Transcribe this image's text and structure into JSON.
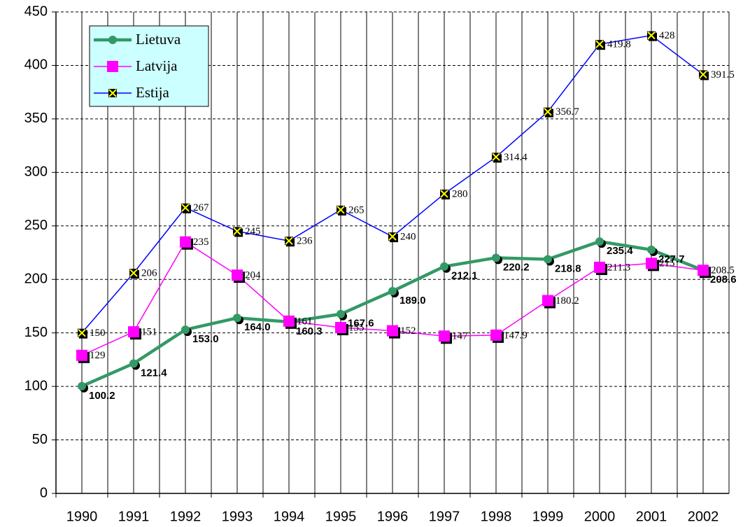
{
  "chart_data": {
    "type": "line",
    "categories": [
      "1990",
      "1991",
      "1992",
      "1993",
      "1994",
      "1995",
      "1996",
      "1997",
      "1998",
      "1999",
      "2000",
      "2001",
      "2002"
    ],
    "series": [
      {
        "name": "Lietuva",
        "color": "#339966",
        "values": [
          100.2,
          121.4,
          153.0,
          164.0,
          160.3,
          167.6,
          189.0,
          212.1,
          220.2,
          218.8,
          235.4,
          227.7,
          208.6
        ],
        "value_labels": [
          "100.2",
          "121.4",
          "153.0",
          "164.0",
          "160.3",
          "167.6",
          "189.0",
          "212.1",
          "220.2",
          "218.8",
          "235.4",
          "227.7",
          "208.6"
        ]
      },
      {
        "name": "Latvija",
        "color": "#ff00ff",
        "values": [
          129,
          151,
          235,
          204,
          161,
          155,
          152,
          147,
          147.9,
          180.2,
          211.3,
          215,
          208.5
        ]
      },
      {
        "name": "Estija",
        "color": "#0000ff",
        "values": [
          150,
          206,
          267,
          245,
          236,
          265,
          240,
          280,
          314.4,
          356.7,
          419.8,
          428,
          391.5
        ]
      }
    ],
    "ylim": [
      0,
      450
    ],
    "yticks": [
      0,
      50,
      100,
      150,
      200,
      250,
      300,
      350,
      400,
      450
    ],
    "grid": true,
    "legend": "upper left"
  }
}
